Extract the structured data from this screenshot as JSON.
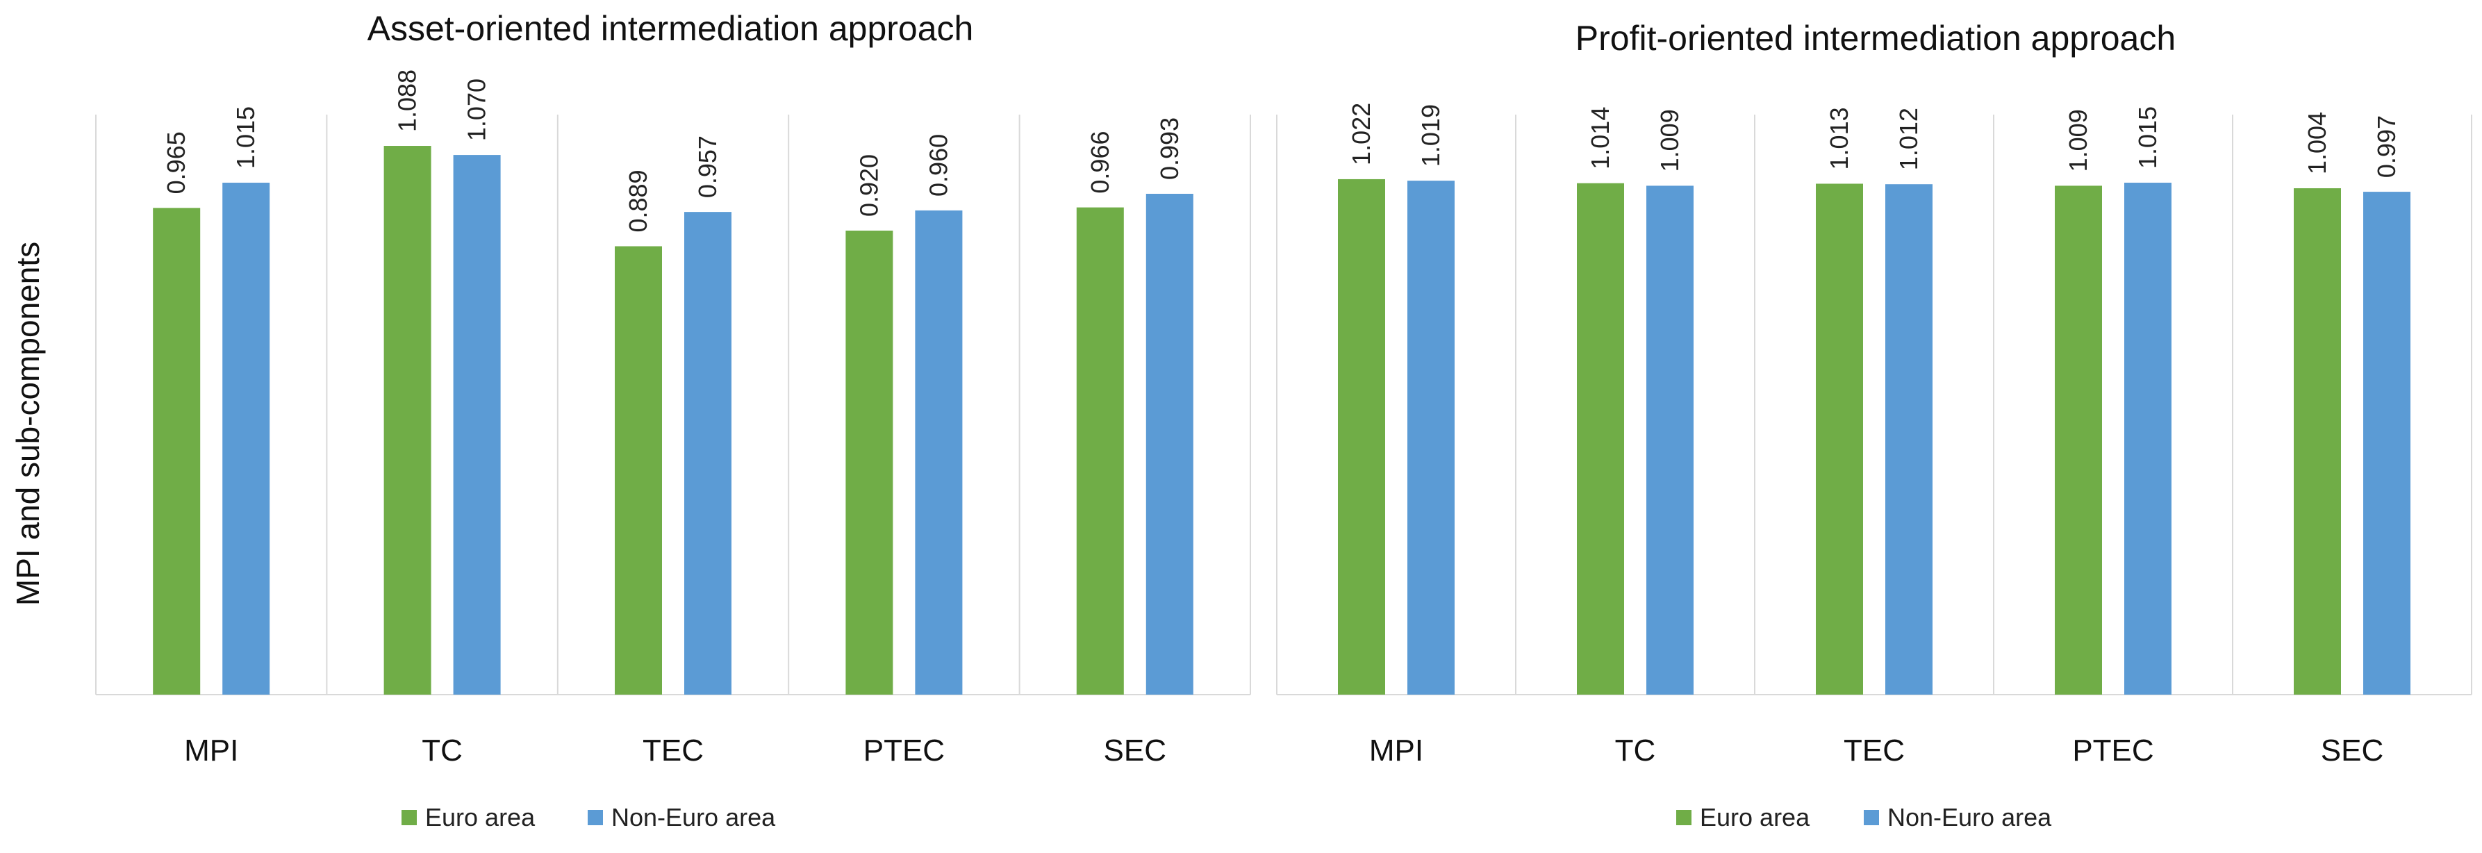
{
  "chart_data": [
    {
      "type": "bar",
      "title": "Asset-oriented intermediation approach",
      "ylabel": "MPI and sub-components",
      "xlabel": "",
      "categories": [
        "MPI",
        "TC",
        "TEC",
        "PTEC",
        "SEC"
      ],
      "series": [
        {
          "name": "Euro area",
          "color": "#70AD47",
          "values": [
            0.965,
            1.088,
            0.889,
            0.92,
            0.966
          ],
          "labels": [
            "0.965",
            "1.088",
            "0.889",
            "0.920",
            "0.966"
          ]
        },
        {
          "name": "Non-Euro area",
          "color": "#5B9BD5",
          "values": [
            1.015,
            1.07,
            0.957,
            0.96,
            0.993
          ],
          "labels": [
            "1.015",
            "1.070",
            "0.957",
            "0.960",
            "0.993"
          ]
        }
      ],
      "ylim": [
        0.0,
        1.15
      ],
      "grid": false,
      "legend": "bottom-center"
    },
    {
      "type": "bar",
      "title": "Profit-oriented intermediation approach",
      "ylabel": "",
      "xlabel": "",
      "categories": [
        "MPI",
        "TC",
        "TEC",
        "PTEC",
        "SEC"
      ],
      "series": [
        {
          "name": "Euro area",
          "color": "#70AD47",
          "values": [
            1.022,
            1.014,
            1.013,
            1.009,
            1.004
          ],
          "labels": [
            "1.022",
            "1.014",
            "1.013",
            "1.009",
            "1.004"
          ]
        },
        {
          "name": "Non-Euro area",
          "color": "#5B9BD5",
          "values": [
            1.019,
            1.009,
            1.012,
            1.015,
            0.997
          ],
          "labels": [
            "1.019",
            "1.009",
            "1.012",
            "1.015",
            "0.997"
          ]
        }
      ],
      "ylim": [
        0.0,
        1.15
      ],
      "grid": false,
      "legend": "bottom-center"
    }
  ]
}
